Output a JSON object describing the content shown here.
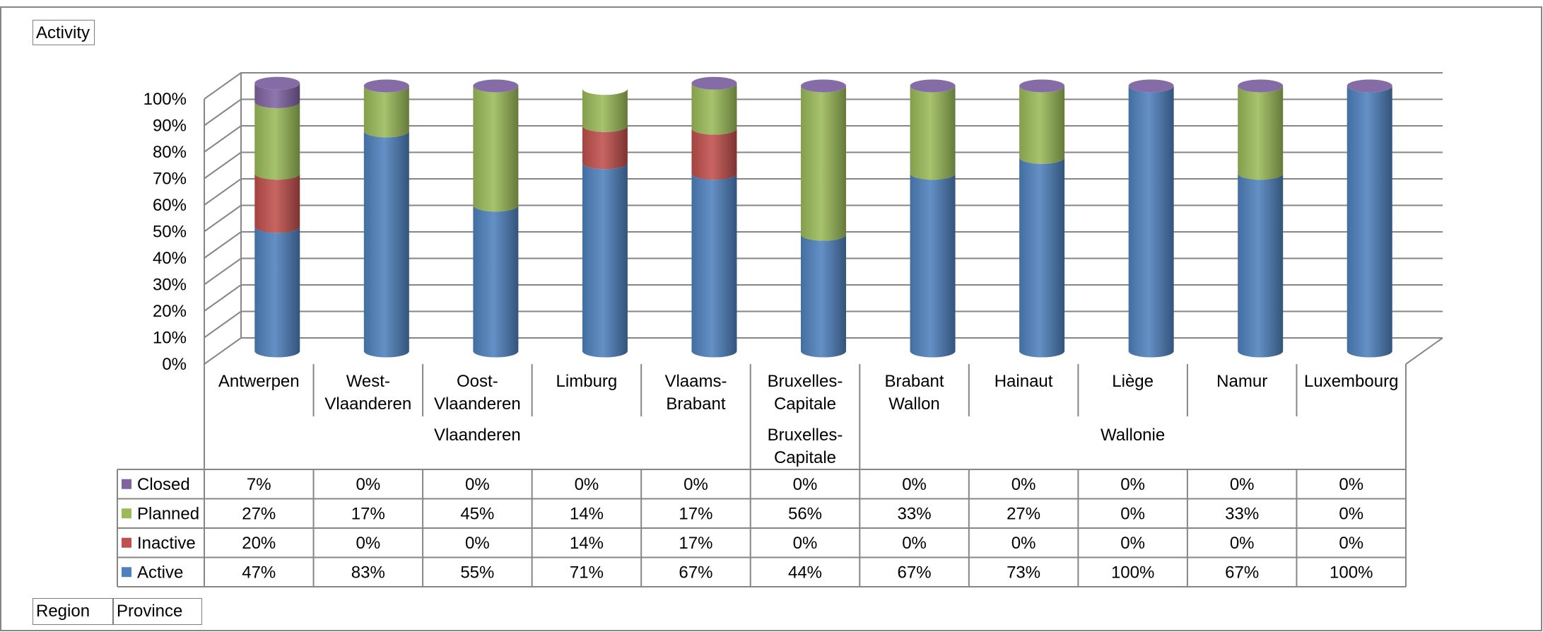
{
  "labels": {
    "activity": "Activity",
    "region": "Region",
    "province": "Province"
  },
  "chart_data": {
    "type": "bar",
    "subtype": "stacked-100-percent-3d-cylinder",
    "yticks": [
      "0%",
      "10%",
      "20%",
      "30%",
      "40%",
      "50%",
      "60%",
      "70%",
      "80%",
      "90%",
      "100%"
    ],
    "ylim": [
      0,
      100
    ],
    "grid": true,
    "categories": [
      {
        "line1": "Antwerpen",
        "line2": ""
      },
      {
        "line1": "West-",
        "line2": "Vlaanderen"
      },
      {
        "line1": "Oost-",
        "line2": "Vlaanderen"
      },
      {
        "line1": "Limburg",
        "line2": ""
      },
      {
        "line1": "Vlaams-",
        "line2": "Brabant"
      },
      {
        "line1": "Bruxelles-",
        "line2": "Capitale"
      },
      {
        "line1": "Brabant",
        "line2": "Wallon"
      },
      {
        "line1": "Hainaut",
        "line2": ""
      },
      {
        "line1": "Liège",
        "line2": ""
      },
      {
        "line1": "Namur",
        "line2": ""
      },
      {
        "line1": "Luxembourg",
        "line2": ""
      }
    ],
    "regions": [
      {
        "line1": "Vlaanderen",
        "line2": "",
        "start": 0,
        "end": 4
      },
      {
        "line1": "Bruxelles-",
        "line2": "Capitale",
        "start": 5,
        "end": 5
      },
      {
        "line1": "Wallonie",
        "line2": "",
        "start": 6,
        "end": 10
      }
    ],
    "series": [
      {
        "name": "Active",
        "color": "#4f81bd",
        "values": [
          47,
          83,
          55,
          71,
          67,
          44,
          67,
          73,
          100,
          67,
          100
        ]
      },
      {
        "name": "Inactive",
        "color": "#c0504d",
        "values": [
          20,
          0,
          0,
          14,
          17,
          0,
          0,
          0,
          0,
          0,
          0
        ]
      },
      {
        "name": "Planned",
        "color": "#9bbb59",
        "values": [
          27,
          17,
          45,
          14,
          17,
          56,
          33,
          27,
          0,
          33,
          0
        ]
      },
      {
        "name": "Closed",
        "color": "#8064a2",
        "values": [
          7,
          0,
          0,
          0,
          0,
          0,
          0,
          0,
          0,
          0,
          0
        ]
      }
    ],
    "table_rows": [
      {
        "name": "Closed",
        "color": "#8064a2",
        "cells": [
          "7%",
          "0%",
          "0%",
          "0%",
          "0%",
          "0%",
          "0%",
          "0%",
          "0%",
          "0%",
          "0%"
        ]
      },
      {
        "name": "Planned",
        "color": "#9bbb59",
        "cells": [
          "27%",
          "17%",
          "45%",
          "14%",
          "17%",
          "56%",
          "33%",
          "27%",
          "0%",
          "33%",
          "0%"
        ]
      },
      {
        "name": "Inactive",
        "color": "#c0504d",
        "cells": [
          "20%",
          "0%",
          "0%",
          "14%",
          "17%",
          "0%",
          "0%",
          "0%",
          "0%",
          "0%",
          "0%"
        ]
      },
      {
        "name": "Active",
        "color": "#4f81bd",
        "cells": [
          "47%",
          "83%",
          "55%",
          "71%",
          "67%",
          "44%",
          "67%",
          "73%",
          "100%",
          "67%",
          "100%"
        ]
      }
    ]
  }
}
